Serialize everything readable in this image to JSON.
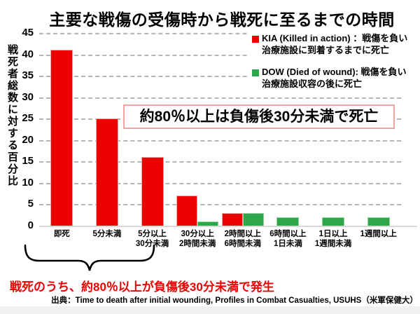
{
  "title": "主要な戦傷の受傷時から戦死に至るまでの時間",
  "y_axis_label": "戦死者総数に対する百分比",
  "legend": {
    "items": [
      {
        "id": "kia",
        "line1": "KIA (Killed in action) ：戦傷を負い",
        "line2": "治療施設に到着するまでに死亡",
        "color": "#ee0000"
      },
      {
        "id": "dow",
        "line1": "DOW (Died of wound): 戦傷を負い",
        "line2": "治療施設収容の後に死亡",
        "color": "#2ea64a"
      }
    ]
  },
  "annotation_box": {
    "text": "約80％以上は負傷後30分未満で死亡",
    "border_color": "#f4a3a3"
  },
  "brace_note": {
    "text": "戦死のうち、約80％以上が負傷後30分未満で発生",
    "color": "#ee0000"
  },
  "source": {
    "text": "出典：Time to death after initial wounding, Profiles in Combat Casualties, USUHS（米軍保健大）"
  },
  "colors": {
    "kia_bar": "#ee0000",
    "kia_bar_border": "#f6a2a2",
    "dow_bar": "#2ea64a",
    "dow_bar_border": "#93d39c",
    "gridline": "#8a8a8a",
    "axis_line": "#d9d9d9",
    "text": "#000000"
  },
  "chart_data": {
    "type": "bar",
    "title": "主要な戦傷の受傷時から戦死に至るまでの時間",
    "xlabel": "",
    "ylabel": "戦死者総数に対する百分比",
    "ylim": [
      0,
      45
    ],
    "ytick_step": 5,
    "grid": "horizontal-dashed",
    "legend_position": "top-right",
    "categories": [
      "即死",
      "5分未満",
      "5分以上\n30分未満",
      "30分以上\n2時間未満",
      "2時間以上\n6時間未満",
      "6時間以上\n1日未満",
      "1日以上\n1週間未満",
      "1週間以上"
    ],
    "series": [
      {
        "name": "KIA (Killed in action)",
        "color": "#ee0000",
        "values": [
          41,
          25,
          16,
          7,
          3,
          0,
          0,
          0
        ]
      },
      {
        "name": "DOW (Died of wound)",
        "color": "#2ea64a",
        "values": [
          0,
          0,
          0,
          1,
          3,
          2,
          2,
          2
        ]
      }
    ]
  }
}
